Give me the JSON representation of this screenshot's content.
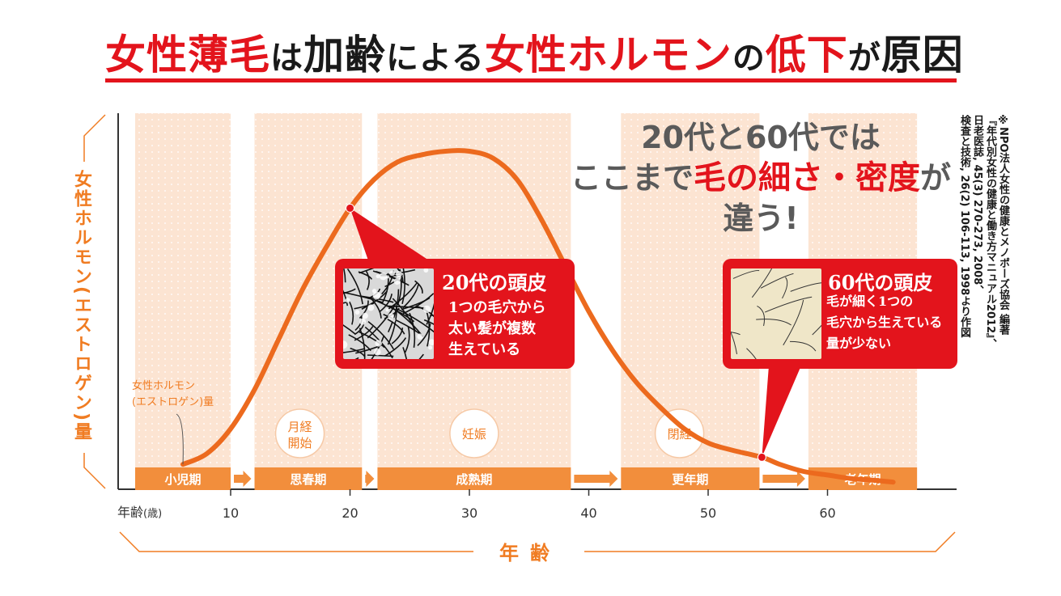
{
  "title": {
    "parts": [
      {
        "text": "女性薄毛",
        "color": "red"
      },
      {
        "text": "は",
        "color": "black",
        "small": true
      },
      {
        "text": "加齢",
        "color": "black"
      },
      {
        "text": "による",
        "color": "black",
        "small": true
      },
      {
        "text": "女性ホルモン",
        "color": "red"
      },
      {
        "text": "の",
        "color": "black",
        "small": true
      },
      {
        "text": "低下",
        "color": "red"
      },
      {
        "text": "が",
        "color": "black",
        "small": true
      },
      {
        "text": "原因",
        "color": "black"
      }
    ]
  },
  "headline": {
    "line1": "20代と60代では",
    "line2_pre": "ここまで",
    "line2_hl": "毛の細さ・密度",
    "line2_post": "が",
    "line3": "違う!"
  },
  "source_note": [
    "※NPO法人女性の健康とメノポーズ協会 編著",
    "『年代別女性の健康と働き方マニュアル2012』、",
    "日老医誌, 45(3) 270-273, 2008、",
    "検査と技術, 26(2) 106-113, 1998より作図"
  ],
  "callout_20s": {
    "title": "20代の頭皮",
    "lines": [
      "1つの毛穴から",
      "太い髪が複数",
      "生えている"
    ]
  },
  "callout_60s": {
    "title": "60代の頭皮",
    "lines": [
      "毛が細く1つの",
      "毛穴から生えている",
      "量が少ない"
    ]
  },
  "chart_data": {
    "type": "line",
    "title": "女性薄毛は加齢による女性ホルモンの低下が原因",
    "ylabel": "女性ホルモン(エストロゲン)量",
    "xlabel": "年齢",
    "x_unit_label": "年齢(歳)",
    "x_ticks": [
      10,
      20,
      30,
      40,
      50,
      60
    ],
    "xlim": [
      0,
      70
    ],
    "series": [
      {
        "name": "女性ホルモン(エストロゲン)量",
        "color": "#ec6a1e",
        "x": [
          6,
          8,
          10,
          12,
          14,
          16,
          18,
          20,
          22,
          24,
          26,
          28,
          30,
          32,
          34,
          36,
          38,
          40,
          42,
          44,
          46,
          48,
          50,
          52,
          54.5,
          56,
          58,
          60,
          62,
          64,
          65.5
        ],
        "y": [
          0.07,
          0.1,
          0.17,
          0.28,
          0.42,
          0.56,
          0.68,
          0.79,
          0.87,
          0.92,
          0.94,
          0.95,
          0.95,
          0.93,
          0.87,
          0.76,
          0.63,
          0.5,
          0.39,
          0.3,
          0.23,
          0.17,
          0.13,
          0.11,
          0.09,
          0.07,
          0.05,
          0.04,
          0.03,
          0.025,
          0.02
        ]
      }
    ],
    "markers": [
      {
        "x": 20,
        "y": 0.79,
        "label": "20代"
      },
      {
        "x": 54.5,
        "y": 0.09,
        "label": "60代"
      }
    ],
    "life_stages": [
      {
        "label": "小児期",
        "start": 2,
        "end": 10
      },
      {
        "label": "思春期",
        "start": 12,
        "end": 21
      },
      {
        "label": "成熟期",
        "start": 22.3,
        "end": 38.5
      },
      {
        "label": "更年期",
        "start": 42.7,
        "end": 54.3
      },
      {
        "label": "老年期",
        "start": 58.4,
        "end": 67.5
      }
    ],
    "events": [
      {
        "label": "月経\n開始",
        "x": 15.8
      },
      {
        "label": "妊娠",
        "x": 30.4
      },
      {
        "label": "閉経",
        "x": 47.6
      }
    ],
    "series_note": "女性ホルモン\n(エストロゲン)量",
    "grid": false
  },
  "colors": {
    "accent_red": "#e3141c",
    "orange": "#f07c22",
    "band": "#fbe2cf"
  }
}
